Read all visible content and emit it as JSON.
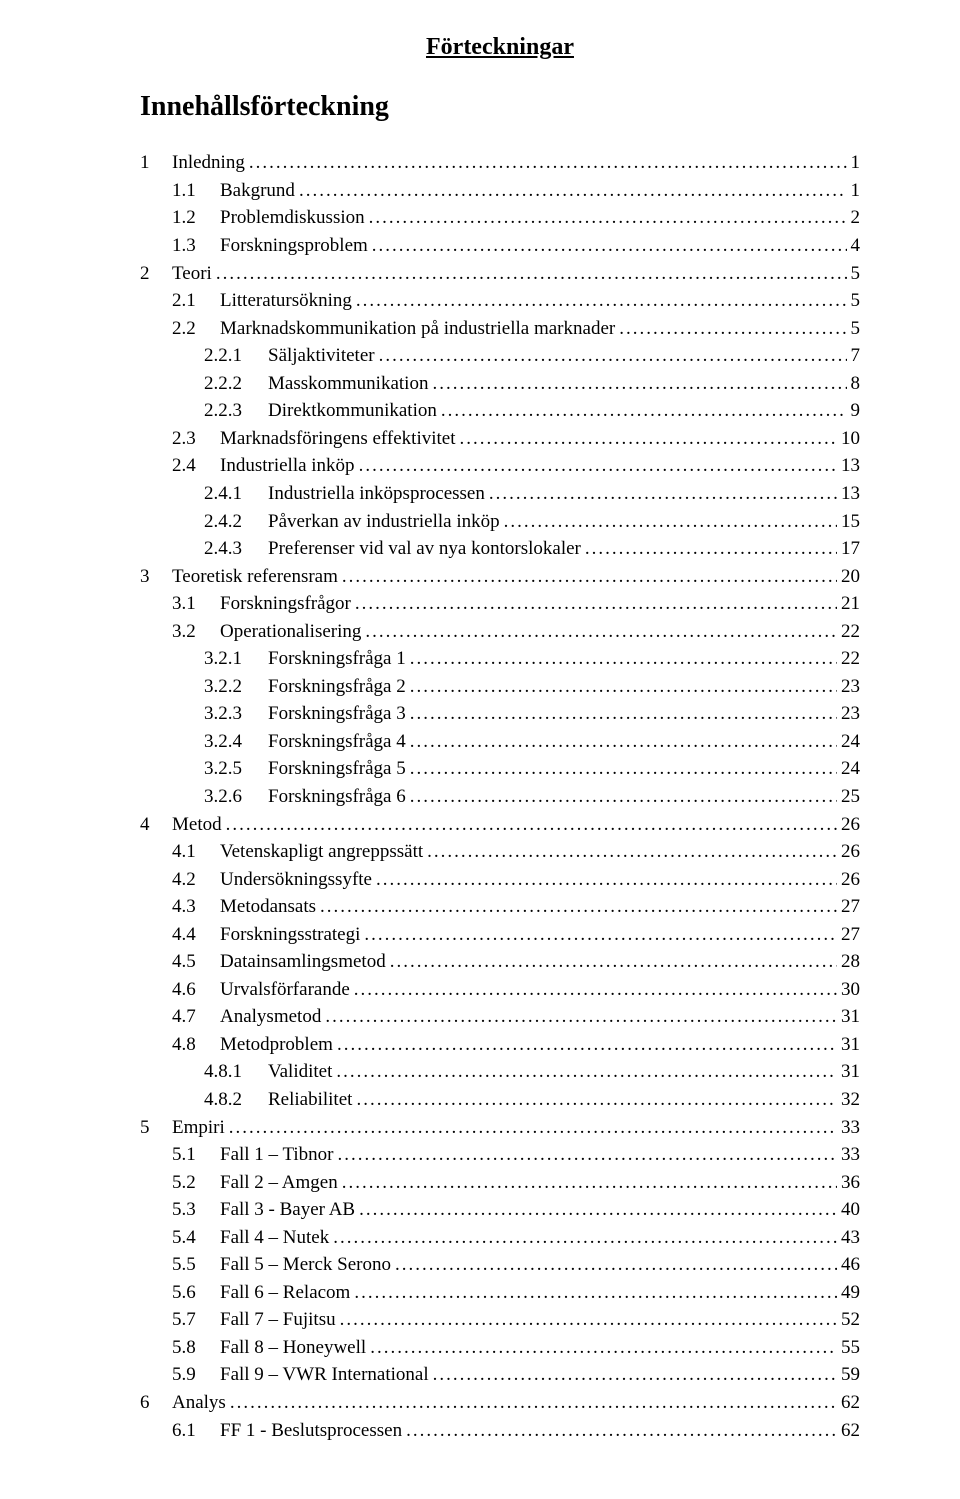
{
  "header_title": "Förteckningar",
  "toc_title": "Innehållsförteckning",
  "entries": [
    {
      "level": 0,
      "num": "1",
      "label": "Inledning",
      "page": "1"
    },
    {
      "level": 1,
      "num": "1.1",
      "label": "Bakgrund",
      "page": "1"
    },
    {
      "level": 1,
      "num": "1.2",
      "label": "Problemdiskussion",
      "page": "2"
    },
    {
      "level": 1,
      "num": "1.3",
      "label": "Forskningsproblem",
      "page": "4"
    },
    {
      "level": 0,
      "num": "2",
      "label": "Teori",
      "page": "5"
    },
    {
      "level": 1,
      "num": "2.1",
      "label": "Litteratursökning",
      "page": "5"
    },
    {
      "level": 1,
      "num": "2.2",
      "label": "Marknadskommunikation på industriella marknader",
      "page": "5"
    },
    {
      "level": 2,
      "num": "2.2.1",
      "label": "Säljaktiviteter",
      "page": "7"
    },
    {
      "level": 2,
      "num": "2.2.2",
      "label": "Masskommunikation",
      "page": "8"
    },
    {
      "level": 2,
      "num": "2.2.3",
      "label": "Direktkommunikation",
      "page": "9"
    },
    {
      "level": 1,
      "num": "2.3",
      "label": "Marknadsföringens effektivitet",
      "page": "10"
    },
    {
      "level": 1,
      "num": "2.4",
      "label": "Industriella inköp",
      "page": "13"
    },
    {
      "level": 2,
      "num": "2.4.1",
      "label": "Industriella inköpsprocessen",
      "page": "13"
    },
    {
      "level": 2,
      "num": "2.4.2",
      "label": "Påverkan av industriella inköp",
      "page": "15"
    },
    {
      "level": 2,
      "num": "2.4.3",
      "label": "Preferenser vid val av nya kontorslokaler",
      "page": "17"
    },
    {
      "level": 0,
      "num": "3",
      "label": "Teoretisk referensram",
      "page": "20"
    },
    {
      "level": 1,
      "num": "3.1",
      "label": "Forskningsfrågor",
      "page": "21"
    },
    {
      "level": 1,
      "num": "3.2",
      "label": "Operationalisering",
      "page": "22"
    },
    {
      "level": 2,
      "num": "3.2.1",
      "label": "Forskningsfråga 1",
      "page": "22"
    },
    {
      "level": 2,
      "num": "3.2.2",
      "label": "Forskningsfråga 2",
      "page": "23"
    },
    {
      "level": 2,
      "num": "3.2.3",
      "label": "Forskningsfråga 3",
      "page": "23"
    },
    {
      "level": 2,
      "num": "3.2.4",
      "label": "Forskningsfråga 4",
      "page": "24"
    },
    {
      "level": 2,
      "num": "3.2.5",
      "label": "Forskningsfråga 5",
      "page": "24"
    },
    {
      "level": 2,
      "num": "3.2.6",
      "label": "Forskningsfråga 6",
      "page": "25"
    },
    {
      "level": 0,
      "num": "4",
      "label": "Metod",
      "page": "26"
    },
    {
      "level": 1,
      "num": "4.1",
      "label": "Vetenskapligt angreppssätt",
      "page": "26"
    },
    {
      "level": 1,
      "num": "4.2",
      "label": "Undersökningssyfte",
      "page": "26"
    },
    {
      "level": 1,
      "num": "4.3",
      "label": "Metodansats",
      "page": "27"
    },
    {
      "level": 1,
      "num": "4.4",
      "label": "Forskningsstrategi",
      "page": "27"
    },
    {
      "level": 1,
      "num": "4.5",
      "label": "Datainsamlingsmetod",
      "page": "28"
    },
    {
      "level": 1,
      "num": "4.6",
      "label": "Urvalsförfarande",
      "page": "30"
    },
    {
      "level": 1,
      "num": "4.7",
      "label": "Analysmetod",
      "page": "31"
    },
    {
      "level": 1,
      "num": "4.8",
      "label": "Metodproblem",
      "page": "31"
    },
    {
      "level": 2,
      "num": "4.8.1",
      "label": "Validitet",
      "page": "31"
    },
    {
      "level": 2,
      "num": "4.8.2",
      "label": "Reliabilitet",
      "page": "32"
    },
    {
      "level": 0,
      "num": "5",
      "label": "Empiri",
      "page": "33"
    },
    {
      "level": 1,
      "num": "5.1",
      "label": "Fall 1 – Tibnor",
      "page": "33"
    },
    {
      "level": 1,
      "num": "5.2",
      "label": "Fall 2 – Amgen",
      "page": "36"
    },
    {
      "level": 1,
      "num": "5.3",
      "label": "Fall 3 - Bayer AB",
      "page": "40"
    },
    {
      "level": 1,
      "num": "5.4",
      "label": "Fall 4 – Nutek",
      "page": "43"
    },
    {
      "level": 1,
      "num": "5.5",
      "label": "Fall 5 – Merck Serono",
      "page": "46"
    },
    {
      "level": 1,
      "num": "5.6",
      "label": "Fall 6 – Relacom",
      "page": "49"
    },
    {
      "level": 1,
      "num": "5.7",
      "label": "Fall 7 – Fujitsu",
      "page": "52"
    },
    {
      "level": 1,
      "num": "5.8",
      "label": "Fall 8 – Honeywell",
      "page": "55"
    },
    {
      "level": 1,
      "num": "5.9",
      "label": "Fall 9 – VWR International",
      "page": "59"
    },
    {
      "level": 0,
      "num": "6",
      "label": "Analys",
      "page": "62"
    },
    {
      "level": 1,
      "num": "6.1",
      "label": "FF 1 - Beslutsprocessen",
      "page": "62"
    }
  ]
}
